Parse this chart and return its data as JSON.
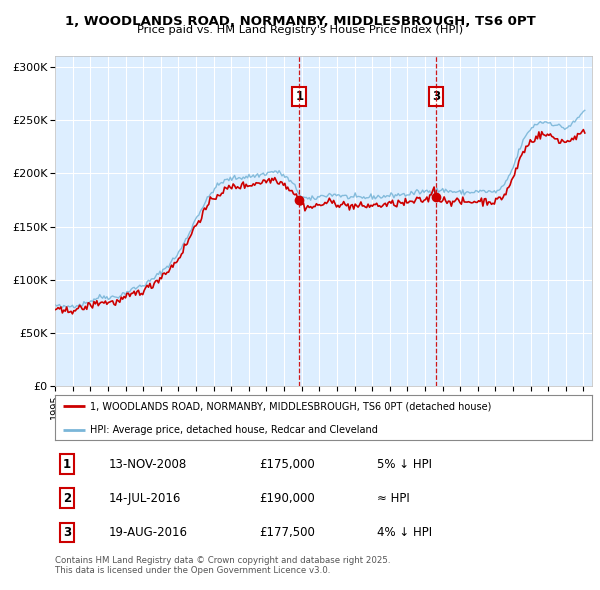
{
  "title": "1, WOODLANDS ROAD, NORMANBY, MIDDLESBROUGH, TS6 0PT",
  "subtitle": "Price paid vs. HM Land Registry's House Price Index (HPI)",
  "ylabel_ticks": [
    "£0",
    "£50K",
    "£100K",
    "£150K",
    "£200K",
    "£250K",
    "£300K"
  ],
  "ytick_values": [
    0,
    50000,
    100000,
    150000,
    200000,
    250000,
    300000
  ],
  "ylim": [
    0,
    310000
  ],
  "xlim_start": 1995.0,
  "xlim_end": 2025.5,
  "hpi_color": "#7ab6d8",
  "price_color": "#cc0000",
  "vline_color": "#cc0000",
  "background_color": "#ddeeff",
  "grid_color": "#ffffff",
  "legend_label_price": "1, WOODLANDS ROAD, NORMANBY, MIDDLESBROUGH, TS6 0PT (detached house)",
  "legend_label_hpi": "HPI: Average price, detached house, Redcar and Cleveland",
  "transaction_markers": [
    {
      "id": 1,
      "date_decimal": 2008.87,
      "price": 175000,
      "label": "1"
    },
    {
      "id": 2,
      "date_decimal": 2016.54,
      "price": 190000,
      "label": "2"
    },
    {
      "id": 3,
      "date_decimal": 2016.63,
      "price": 177500,
      "label": "3"
    }
  ],
  "show_marker_ids": [
    1,
    3
  ],
  "transaction_table": [
    {
      "num": "1",
      "date": "13-NOV-2008",
      "price": "£175,000",
      "relation": "5% ↓ HPI"
    },
    {
      "num": "2",
      "date": "14-JUL-2016",
      "price": "£190,000",
      "relation": "≈ HPI"
    },
    {
      "num": "3",
      "date": "19-AUG-2016",
      "price": "£177,500",
      "relation": "4% ↓ HPI"
    }
  ],
  "footer_text": "Contains HM Land Registry data © Crown copyright and database right 2025.\nThis data is licensed under the Open Government Licence v3.0."
}
